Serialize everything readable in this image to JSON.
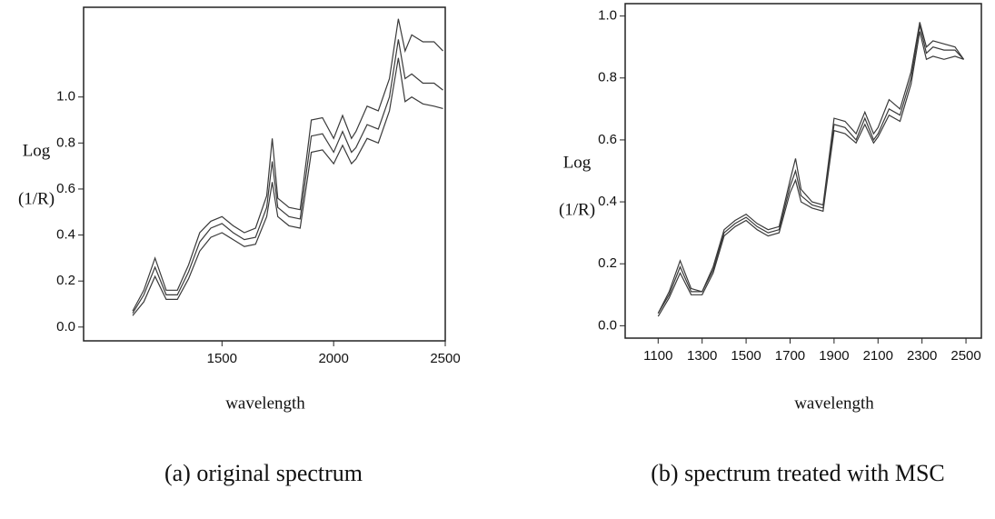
{
  "chart_data": [
    {
      "type": "line",
      "caption": "(a) original spectrum",
      "ylabel": [
        "Log",
        "(1/R)"
      ],
      "xlabel": "wavelength",
      "x": [
        1100,
        1150,
        1200,
        1250,
        1300,
        1350,
        1400,
        1450,
        1500,
        1550,
        1600,
        1650,
        1700,
        1725,
        1750,
        1800,
        1850,
        1900,
        1950,
        2000,
        2040,
        2080,
        2100,
        2150,
        2200,
        2250,
        2290,
        2320,
        2350,
        2400,
        2450,
        2490
      ],
      "xlim": [
        880,
        2500
      ],
      "xticks": [
        1500,
        2000,
        2500
      ],
      "ylim": [
        -0.06,
        1.39
      ],
      "yticks": [
        {
          "value": 0,
          "label": "0.0"
        },
        0.2,
        0.4,
        0.6,
        0.8,
        {
          "value": 1,
          "label": "1.0"
        }
      ],
      "series": [
        {
          "color": "#3a3a3a",
          "values": [
            0.07,
            0.16,
            0.3,
            0.16,
            0.16,
            0.27,
            0.41,
            0.46,
            0.48,
            0.44,
            0.41,
            0.43,
            0.57,
            0.82,
            0.56,
            0.52,
            0.51,
            0.9,
            0.91,
            0.82,
            0.92,
            0.82,
            0.85,
            0.96,
            0.94,
            1.08,
            1.34,
            1.2,
            1.27,
            1.24,
            1.24,
            1.2
          ]
        },
        {
          "color": "#3a3a3a",
          "values": [
            0.06,
            0.14,
            0.26,
            0.14,
            0.14,
            0.24,
            0.37,
            0.43,
            0.45,
            0.41,
            0.38,
            0.39,
            0.52,
            0.72,
            0.52,
            0.48,
            0.47,
            0.83,
            0.84,
            0.76,
            0.85,
            0.76,
            0.78,
            0.88,
            0.86,
            1.0,
            1.25,
            1.08,
            1.1,
            1.06,
            1.06,
            1.03
          ]
        },
        {
          "color": "#3a3a3a",
          "values": [
            0.05,
            0.11,
            0.22,
            0.12,
            0.12,
            0.21,
            0.33,
            0.39,
            0.41,
            0.38,
            0.35,
            0.36,
            0.48,
            0.63,
            0.48,
            0.44,
            0.43,
            0.76,
            0.77,
            0.71,
            0.79,
            0.71,
            0.73,
            0.82,
            0.8,
            0.94,
            1.17,
            0.98,
            1.0,
            0.97,
            0.96,
            0.95
          ]
        }
      ]
    },
    {
      "type": "line",
      "caption": "(b) spectrum treated with MSC",
      "ylabel": [
        "Log",
        "(1/R)"
      ],
      "xlabel": "wavelength",
      "x": [
        1100,
        1150,
        1200,
        1250,
        1300,
        1350,
        1400,
        1450,
        1500,
        1550,
        1600,
        1650,
        1700,
        1725,
        1750,
        1800,
        1850,
        1900,
        1950,
        2000,
        2040,
        2080,
        2100,
        2150,
        2200,
        2250,
        2290,
        2320,
        2350,
        2400,
        2450,
        2490
      ],
      "xlim": [
        950,
        2570
      ],
      "xticks": [
        1100,
        1300,
        1500,
        1700,
        1900,
        2100,
        2300,
        2500
      ],
      "ylim": [
        -0.04,
        1.04
      ],
      "yticks": [
        {
          "value": 0,
          "label": "0.0"
        },
        0.2,
        0.4,
        0.6,
        0.8,
        {
          "value": 1,
          "label": "1.0"
        }
      ],
      "series": [
        {
          "color": "#3a3a3a",
          "values": [
            0.04,
            0.11,
            0.21,
            0.12,
            0.11,
            0.19,
            0.31,
            0.34,
            0.36,
            0.33,
            0.31,
            0.32,
            0.47,
            0.54,
            0.44,
            0.4,
            0.39,
            0.67,
            0.66,
            0.62,
            0.69,
            0.62,
            0.64,
            0.73,
            0.7,
            0.82,
            0.98,
            0.9,
            0.92,
            0.91,
            0.9,
            0.86
          ]
        },
        {
          "color": "#3a3a3a",
          "values": [
            0.04,
            0.1,
            0.19,
            0.11,
            0.11,
            0.18,
            0.3,
            0.33,
            0.35,
            0.32,
            0.3,
            0.31,
            0.45,
            0.5,
            0.42,
            0.39,
            0.38,
            0.65,
            0.64,
            0.6,
            0.67,
            0.6,
            0.62,
            0.7,
            0.68,
            0.8,
            0.97,
            0.88,
            0.9,
            0.89,
            0.89,
            0.86
          ]
        },
        {
          "color": "#3a3a3a",
          "values": [
            0.03,
            0.09,
            0.17,
            0.1,
            0.1,
            0.17,
            0.29,
            0.32,
            0.34,
            0.31,
            0.29,
            0.3,
            0.43,
            0.47,
            0.4,
            0.38,
            0.37,
            0.63,
            0.62,
            0.59,
            0.65,
            0.59,
            0.61,
            0.68,
            0.66,
            0.78,
            0.95,
            0.86,
            0.87,
            0.86,
            0.87,
            0.86
          ]
        }
      ]
    }
  ]
}
